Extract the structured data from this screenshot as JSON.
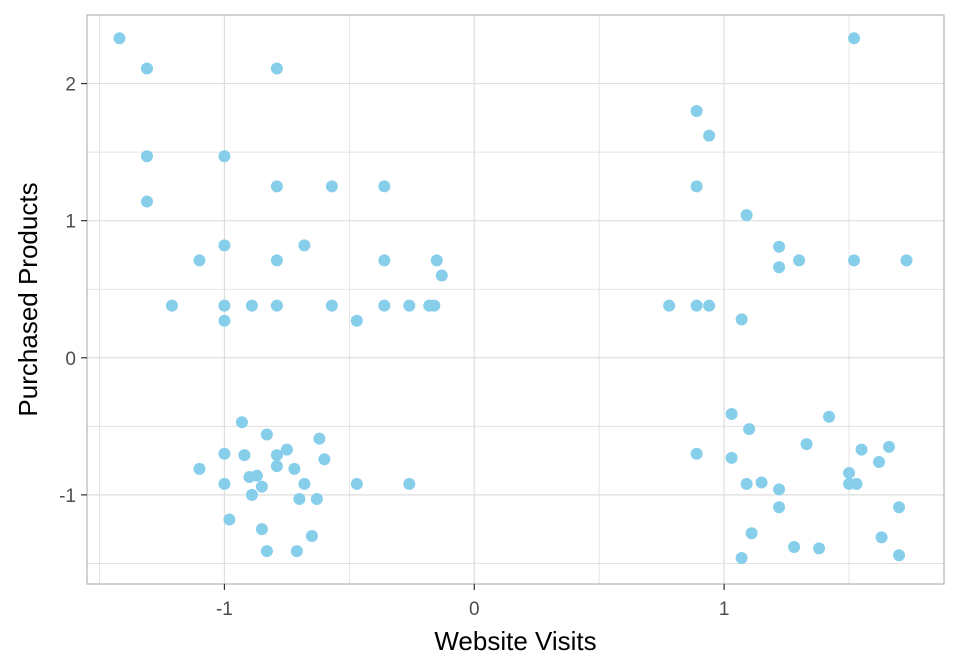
{
  "chart_data": {
    "type": "scatter",
    "title": "",
    "xlabel": "Website Visits",
    "ylabel": "Purchased Products",
    "xlim": [
      -1.55,
      1.88
    ],
    "ylim": [
      -1.65,
      2.5
    ],
    "x_ticks": [
      -1,
      0,
      1
    ],
    "x_tick_labels": [
      "-1",
      "0",
      "1"
    ],
    "y_ticks": [
      -1,
      0,
      1,
      2
    ],
    "y_tick_labels": [
      "-1",
      "0",
      "1",
      "2"
    ],
    "grid": true,
    "legend": "none",
    "colors": {
      "points": "#87CEEB",
      "grid": "#dedede",
      "border": "#b3b3b3"
    },
    "series": [
      {
        "points": [
          [
            -1.42,
            2.33
          ],
          [
            -1.31,
            2.11
          ],
          [
            -1.31,
            1.47
          ],
          [
            -1.31,
            1.14
          ],
          [
            -0.79,
            2.11
          ],
          [
            -1.0,
            1.47
          ],
          [
            -0.79,
            1.25
          ],
          [
            -0.57,
            1.25
          ],
          [
            -0.36,
            1.25
          ],
          [
            -1.0,
            0.82
          ],
          [
            -0.68,
            0.82
          ],
          [
            -1.1,
            0.71
          ],
          [
            -0.79,
            0.71
          ],
          [
            -0.36,
            0.71
          ],
          [
            -0.15,
            0.71
          ],
          [
            -0.13,
            0.6
          ],
          [
            -1.21,
            0.38
          ],
          [
            -1.0,
            0.38
          ],
          [
            -0.89,
            0.38
          ],
          [
            -0.79,
            0.38
          ],
          [
            -0.57,
            0.38
          ],
          [
            -0.36,
            0.38
          ],
          [
            -0.26,
            0.38
          ],
          [
            -0.18,
            0.38
          ],
          [
            -0.16,
            0.38
          ],
          [
            -1.0,
            0.27
          ],
          [
            -0.47,
            0.27
          ],
          [
            -0.93,
            -0.47
          ],
          [
            -0.83,
            -0.56
          ],
          [
            -0.75,
            -0.67
          ],
          [
            -0.62,
            -0.59
          ],
          [
            -1.0,
            -0.7
          ],
          [
            -0.92,
            -0.71
          ],
          [
            -0.79,
            -0.71
          ],
          [
            -0.6,
            -0.74
          ],
          [
            -1.1,
            -0.81
          ],
          [
            -0.72,
            -0.81
          ],
          [
            -0.9,
            -0.87
          ],
          [
            -0.87,
            -0.86
          ],
          [
            -0.79,
            -0.79
          ],
          [
            -1.0,
            -0.92
          ],
          [
            -0.85,
            -0.94
          ],
          [
            -0.68,
            -0.92
          ],
          [
            -0.47,
            -0.92
          ],
          [
            -0.26,
            -0.92
          ],
          [
            -0.89,
            -1.0
          ],
          [
            -0.7,
            -1.03
          ],
          [
            -0.63,
            -1.03
          ],
          [
            -0.98,
            -1.18
          ],
          [
            -0.85,
            -1.25
          ],
          [
            -0.65,
            -1.3
          ],
          [
            -0.83,
            -1.41
          ],
          [
            -0.71,
            -1.41
          ],
          [
            1.52,
            2.33
          ],
          [
            0.89,
            1.8
          ],
          [
            0.94,
            1.62
          ],
          [
            0.89,
            1.25
          ],
          [
            1.09,
            1.04
          ],
          [
            1.22,
            0.81
          ],
          [
            1.22,
            0.66
          ],
          [
            1.3,
            0.71
          ],
          [
            1.52,
            0.71
          ],
          [
            1.73,
            0.71
          ],
          [
            0.78,
            0.38
          ],
          [
            0.89,
            0.38
          ],
          [
            0.94,
            0.38
          ],
          [
            1.07,
            0.28
          ],
          [
            1.03,
            -0.41
          ],
          [
            1.1,
            -0.52
          ],
          [
            1.42,
            -0.43
          ],
          [
            1.33,
            -0.63
          ],
          [
            0.89,
            -0.7
          ],
          [
            1.03,
            -0.73
          ],
          [
            1.55,
            -0.67
          ],
          [
            1.62,
            -0.76
          ],
          [
            1.66,
            -0.65
          ],
          [
            1.5,
            -0.84
          ],
          [
            1.09,
            -0.92
          ],
          [
            1.15,
            -0.91
          ],
          [
            1.22,
            -0.96
          ],
          [
            1.5,
            -0.92
          ],
          [
            1.53,
            -0.92
          ],
          [
            1.22,
            -1.09
          ],
          [
            1.7,
            -1.09
          ],
          [
            1.11,
            -1.28
          ],
          [
            1.28,
            -1.38
          ],
          [
            1.38,
            -1.39
          ],
          [
            1.63,
            -1.31
          ],
          [
            1.07,
            -1.46
          ],
          [
            1.7,
            -1.44
          ]
        ]
      }
    ]
  }
}
